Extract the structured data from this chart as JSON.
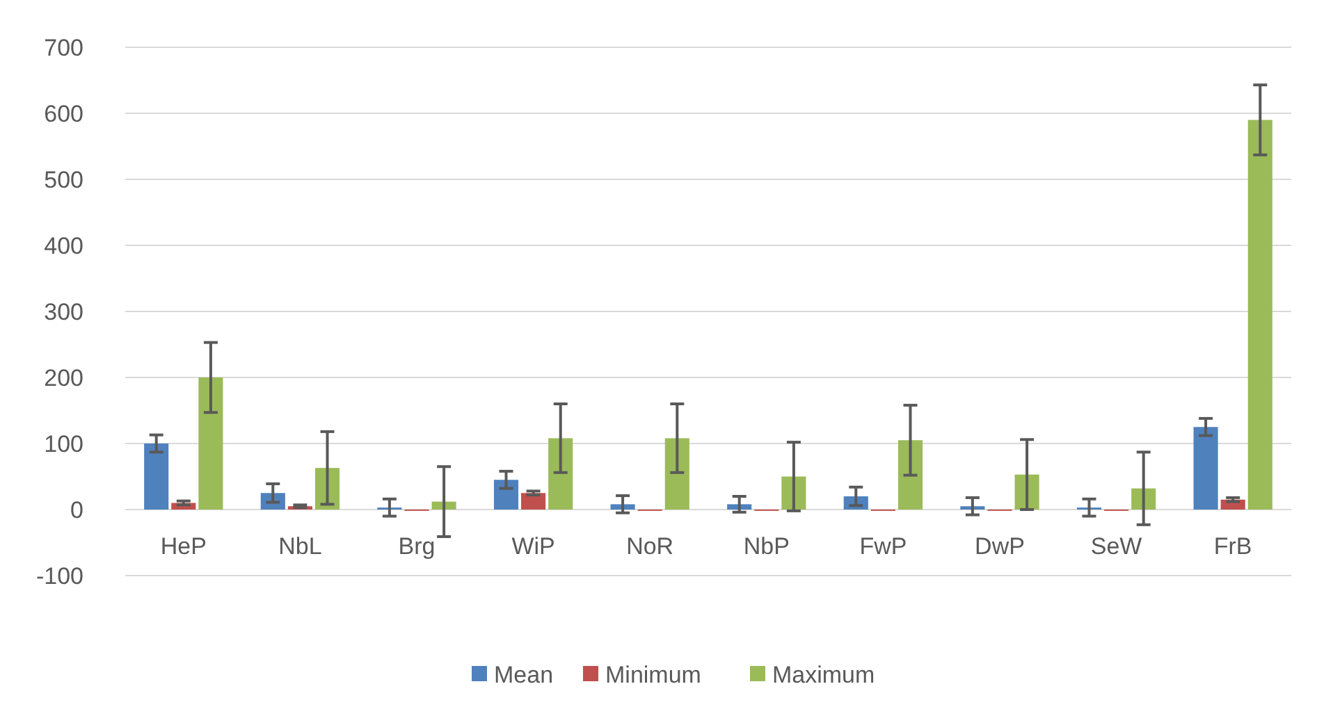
{
  "chart_data": {
    "type": "bar",
    "categories": [
      "HeP",
      "NbL",
      "Brg",
      "WiP",
      "NoR",
      "NbP",
      "FwP",
      "DwP",
      "SeW",
      "FrB"
    ],
    "series": [
      {
        "name": "Mean",
        "color": "#4f81bd",
        "values": [
          100,
          25,
          3,
          45,
          8,
          8,
          20,
          5,
          3,
          125
        ],
        "errors": [
          13,
          14,
          13,
          13,
          13,
          12,
          14,
          13,
          13,
          13
        ]
      },
      {
        "name": "Minimum",
        "color": "#c0504d",
        "values": [
          10,
          5,
          -2,
          25,
          -2,
          -2,
          -2,
          -2,
          -2,
          15
        ],
        "errors": [
          3,
          2,
          null,
          3,
          null,
          null,
          null,
          null,
          null,
          3
        ]
      },
      {
        "name": "Maximum",
        "color": "#9bbb59",
        "values": [
          200,
          63,
          12,
          108,
          108,
          50,
          105,
          53,
          32,
          590
        ],
        "errors": [
          53,
          55,
          53,
          52,
          52,
          52,
          53,
          53,
          55,
          53
        ]
      }
    ],
    "ylim": [
      -100,
      700
    ],
    "yticks": [
      -100,
      0,
      100,
      200,
      300,
      400,
      500,
      600,
      700
    ],
    "grid": "y",
    "legend": "bottom"
  }
}
